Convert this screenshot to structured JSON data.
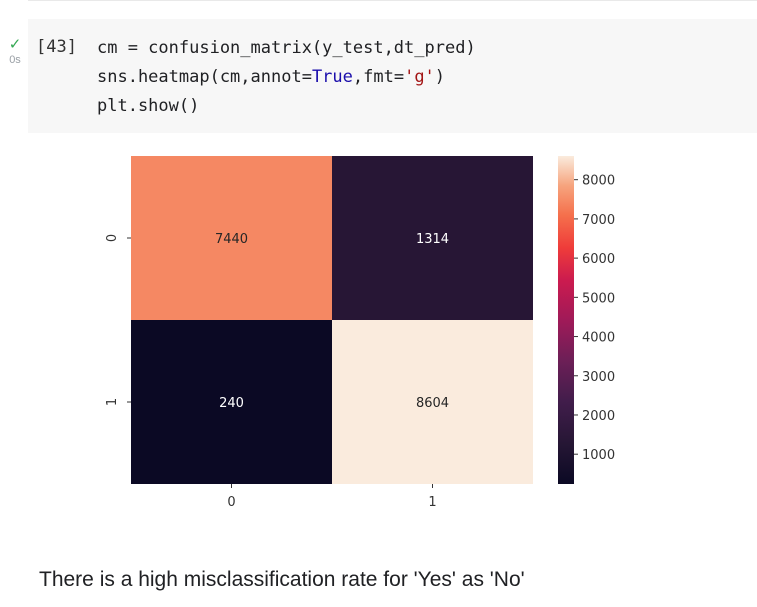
{
  "cell": {
    "run_status_icon": "check-icon",
    "run_time": "0s",
    "exec_count": "[43]",
    "code": {
      "line1": "cm = confusion_matrix(y_test,dt_pred)",
      "line2_a": "sns.heatmap(cm,annot=",
      "line2_kw": "True",
      "line2_b": ",fmt=",
      "line2_str": "'g'",
      "line2_c": ")",
      "line3": "plt.show()"
    }
  },
  "chart_data": {
    "type": "heatmap",
    "rows": [
      "0",
      "1"
    ],
    "columns": [
      "0",
      "1"
    ],
    "values": [
      [
        7440,
        1314
      ],
      [
        240,
        8604
      ]
    ],
    "colorbar": {
      "ticks": [
        1000,
        2000,
        3000,
        4000,
        5000,
        6000,
        7000,
        8000
      ],
      "min": 240,
      "max": 8604
    },
    "colormap": "rocket"
  },
  "output_text": "There is a high misclassification rate for 'Yes' as 'No'"
}
